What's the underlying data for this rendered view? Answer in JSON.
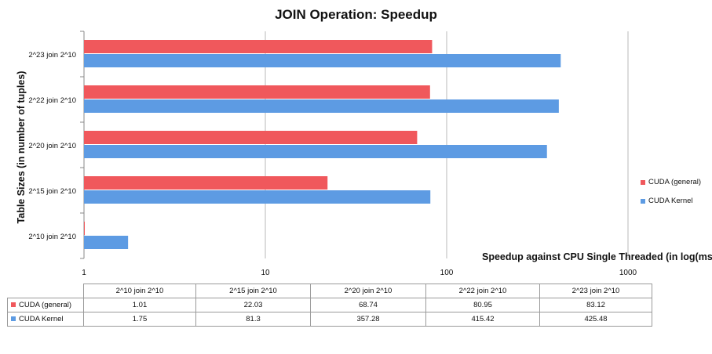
{
  "chart_data": {
    "type": "bar",
    "orientation": "horizontal",
    "title": "JOIN Operation: Speedup",
    "xlabel": "Speedup against CPU Single Threaded (in log(ms))",
    "ylabel": "Table Sizes (in number of tuples)",
    "x_scale": "log",
    "xlim": [
      1,
      1000
    ],
    "x_ticks": [
      "1",
      "10",
      "100",
      "1000"
    ],
    "grid": "vertical",
    "legend_position": "right",
    "categories": [
      "2^10 join 2^10",
      "2^15 join 2^10",
      "2^20 join 2^10",
      "2^22 join 2^10",
      "2^23 join 2^10"
    ],
    "series": [
      {
        "name": "CUDA (general)",
        "color": "#f0585c",
        "values": [
          1.01,
          22.03,
          68.74,
          80.95,
          83.12
        ],
        "labels": [
          "1.01",
          "22.03",
          "68.74",
          "80.95",
          "83.12"
        ]
      },
      {
        "name": "CUDA Kernel",
        "color": "#5d9be3",
        "values": [
          1.75,
          81.3,
          357.28,
          415.42,
          425.48
        ],
        "labels": [
          "1.75",
          "81.3",
          "357.28",
          "415.42",
          "425.48"
        ]
      }
    ]
  }
}
